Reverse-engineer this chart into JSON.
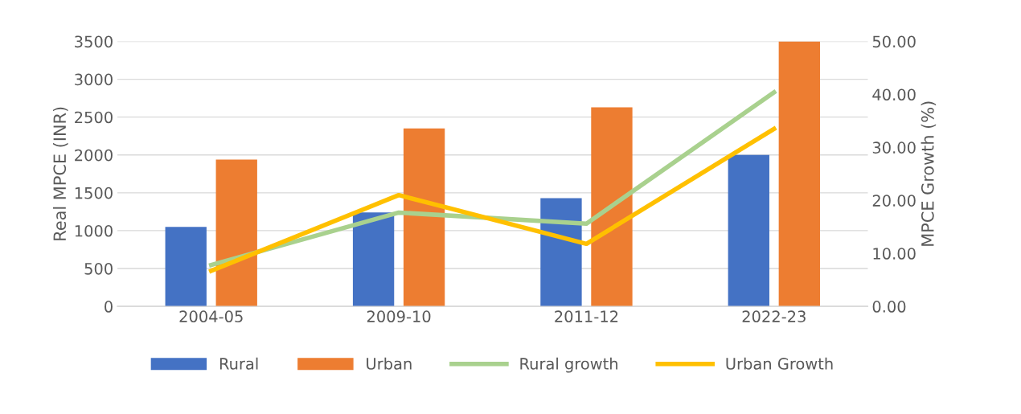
{
  "chart_data": {
    "type": "bar",
    "ylabel": "Real MPCE (INR)",
    "y2label": "MPCE Growth (%)",
    "categories": [
      "2004-05",
      "2009-10",
      "2011-12",
      "2022-23"
    ],
    "series": [
      {
        "name": "Rural",
        "color": "#4472c4",
        "values": [
          1050,
          1240,
          1430,
          2000
        ]
      },
      {
        "name": "Urban",
        "color": "#ed7d31",
        "values": [
          1940,
          2350,
          2630,
          3500
        ]
      },
      {
        "name": "Rural growth",
        "type": "line",
        "axis": "y2",
        "color": "#a9d18e",
        "values": [
          7.8,
          17.7,
          15.6,
          40.4
        ]
      },
      {
        "name": "Urban Growth",
        "type": "line",
        "axis": "y2",
        "color": "#ffc000",
        "values": [
          6.7,
          21.0,
          11.8,
          33.5
        ]
      }
    ],
    "ylim": [
      0,
      3500
    ],
    "yticks": [
      0,
      500,
      1000,
      1500,
      2000,
      2500,
      3000,
      3500
    ],
    "y2lim": [
      0,
      50
    ],
    "y2ticks": [
      {
        "value": 0,
        "label": "0.00"
      },
      {
        "value": 10,
        "label": "10.00"
      },
      {
        "value": 20,
        "label": "20.00"
      },
      {
        "value": 30,
        "label": "30.00"
      },
      {
        "value": 40,
        "label": "40.00"
      },
      {
        "value": 50,
        "label": "50.00"
      }
    ],
    "grid": "y",
    "legend": "bottom",
    "marker": "none",
    "line_style": "solid"
  }
}
